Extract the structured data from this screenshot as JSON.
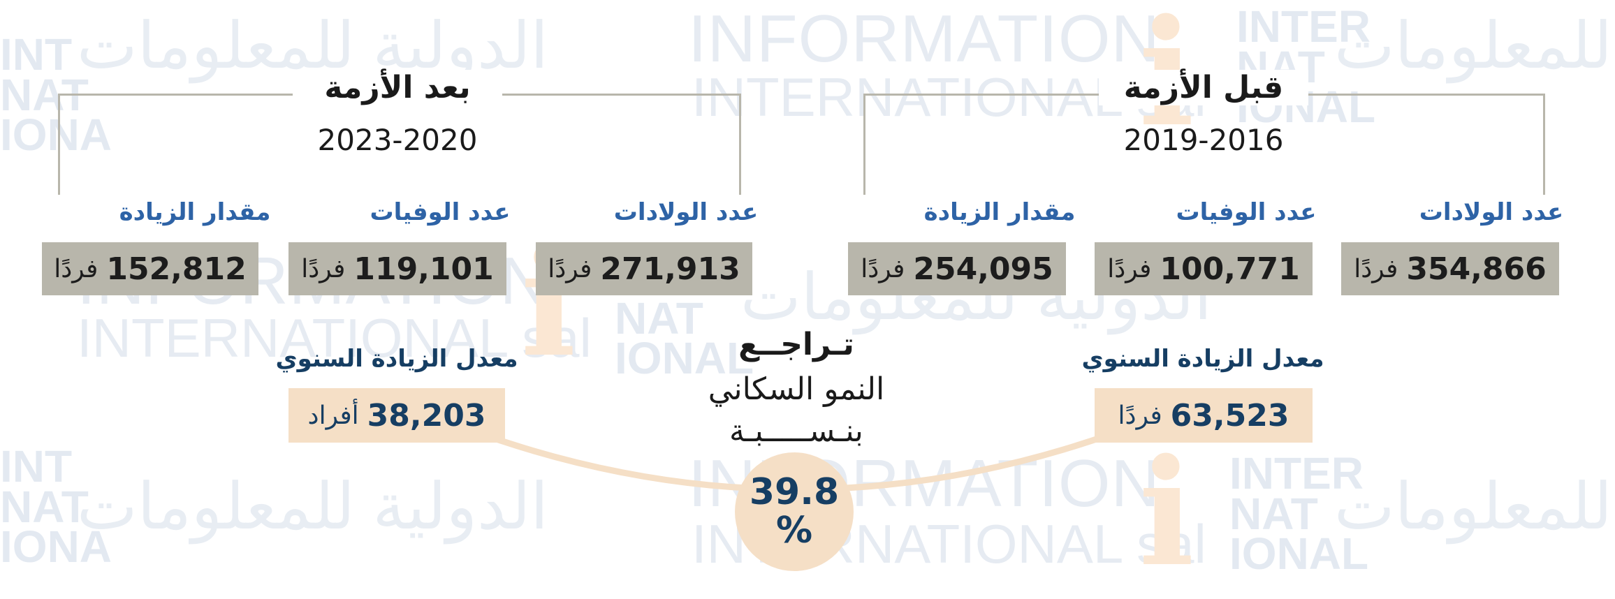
{
  "watermark": {
    "info": "INFORMATION",
    "intl": "INTERNATIONAL sal",
    "letter": "i",
    "arabic": "الدولية للمعلومات",
    "block": "INTER NAT IONAL"
  },
  "before": {
    "title": "قبل الأزمة",
    "years": "2019-2016",
    "stats": [
      {
        "label": "عدد الولادات",
        "value": "354,866",
        "unit": "فردًا"
      },
      {
        "label": "عدد الوفيات",
        "value": "100,771",
        "unit": "فردًا"
      },
      {
        "label": "مقدار الزيادة",
        "value": "254,095",
        "unit": "فردًا"
      }
    ],
    "annual": {
      "label": "معدل الزيادة السنوي",
      "value": "63,523",
      "unit": "فردًا"
    }
  },
  "after": {
    "title": "بعد الأزمة",
    "years": "2023-2020",
    "stats": [
      {
        "label": "عدد الولادات",
        "value": "271,913",
        "unit": "فردًا"
      },
      {
        "label": "عدد الوفيات",
        "value": "119,101",
        "unit": "فردًا"
      },
      {
        "label": "مقدار الزيادة",
        "value": "152,812",
        "unit": "فردًا"
      }
    ],
    "annual": {
      "label": "معدل الزيادة السنوي",
      "value": "38,203",
      "unit": "أفراد"
    }
  },
  "decline": {
    "line1": "تـراجــع",
    "line2": "النمو السكاني",
    "line3": "بنـســـــبـة",
    "percent_value": "39.8",
    "percent_sign": "%"
  },
  "colors": {
    "label_blue": "#2e63a6",
    "dark_navy": "#163e63",
    "gray_box": "#b8b6ab",
    "peach": "#f5dfc6"
  }
}
